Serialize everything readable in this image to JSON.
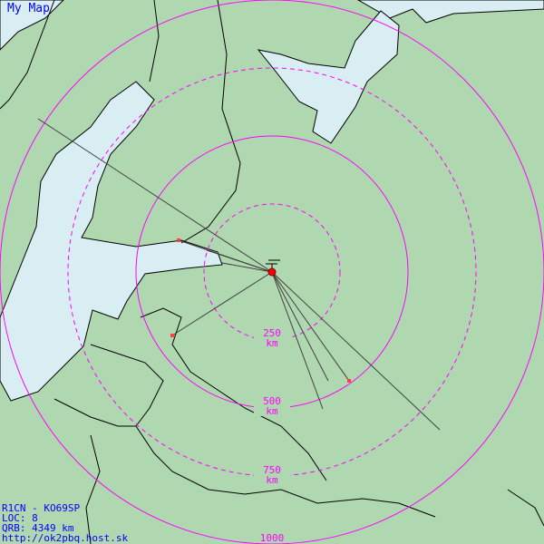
{
  "map": {
    "title": "My Map",
    "colors": {
      "land": "#b0d8b0",
      "water": "#d8eef3",
      "rings": "#ff00ff",
      "lines": "#404040",
      "station": "#ff0000",
      "text": "#0000ff"
    },
    "rings": [
      {
        "value": "250",
        "unit": "km",
        "style": "dashed"
      },
      {
        "value": "500",
        "unit": "km",
        "style": "solid"
      },
      {
        "value": "750",
        "unit": "km",
        "style": "dashed"
      },
      {
        "value": "1000",
        "unit": "",
        "style": "solid"
      }
    ],
    "station_icon": "antenna-icon"
  },
  "info": {
    "line1": "R1CN - KO69SP",
    "line2": "LOC: 8",
    "line3": "QRB: 4349 km",
    "line4": "http://ok2pbq.host.sk"
  }
}
